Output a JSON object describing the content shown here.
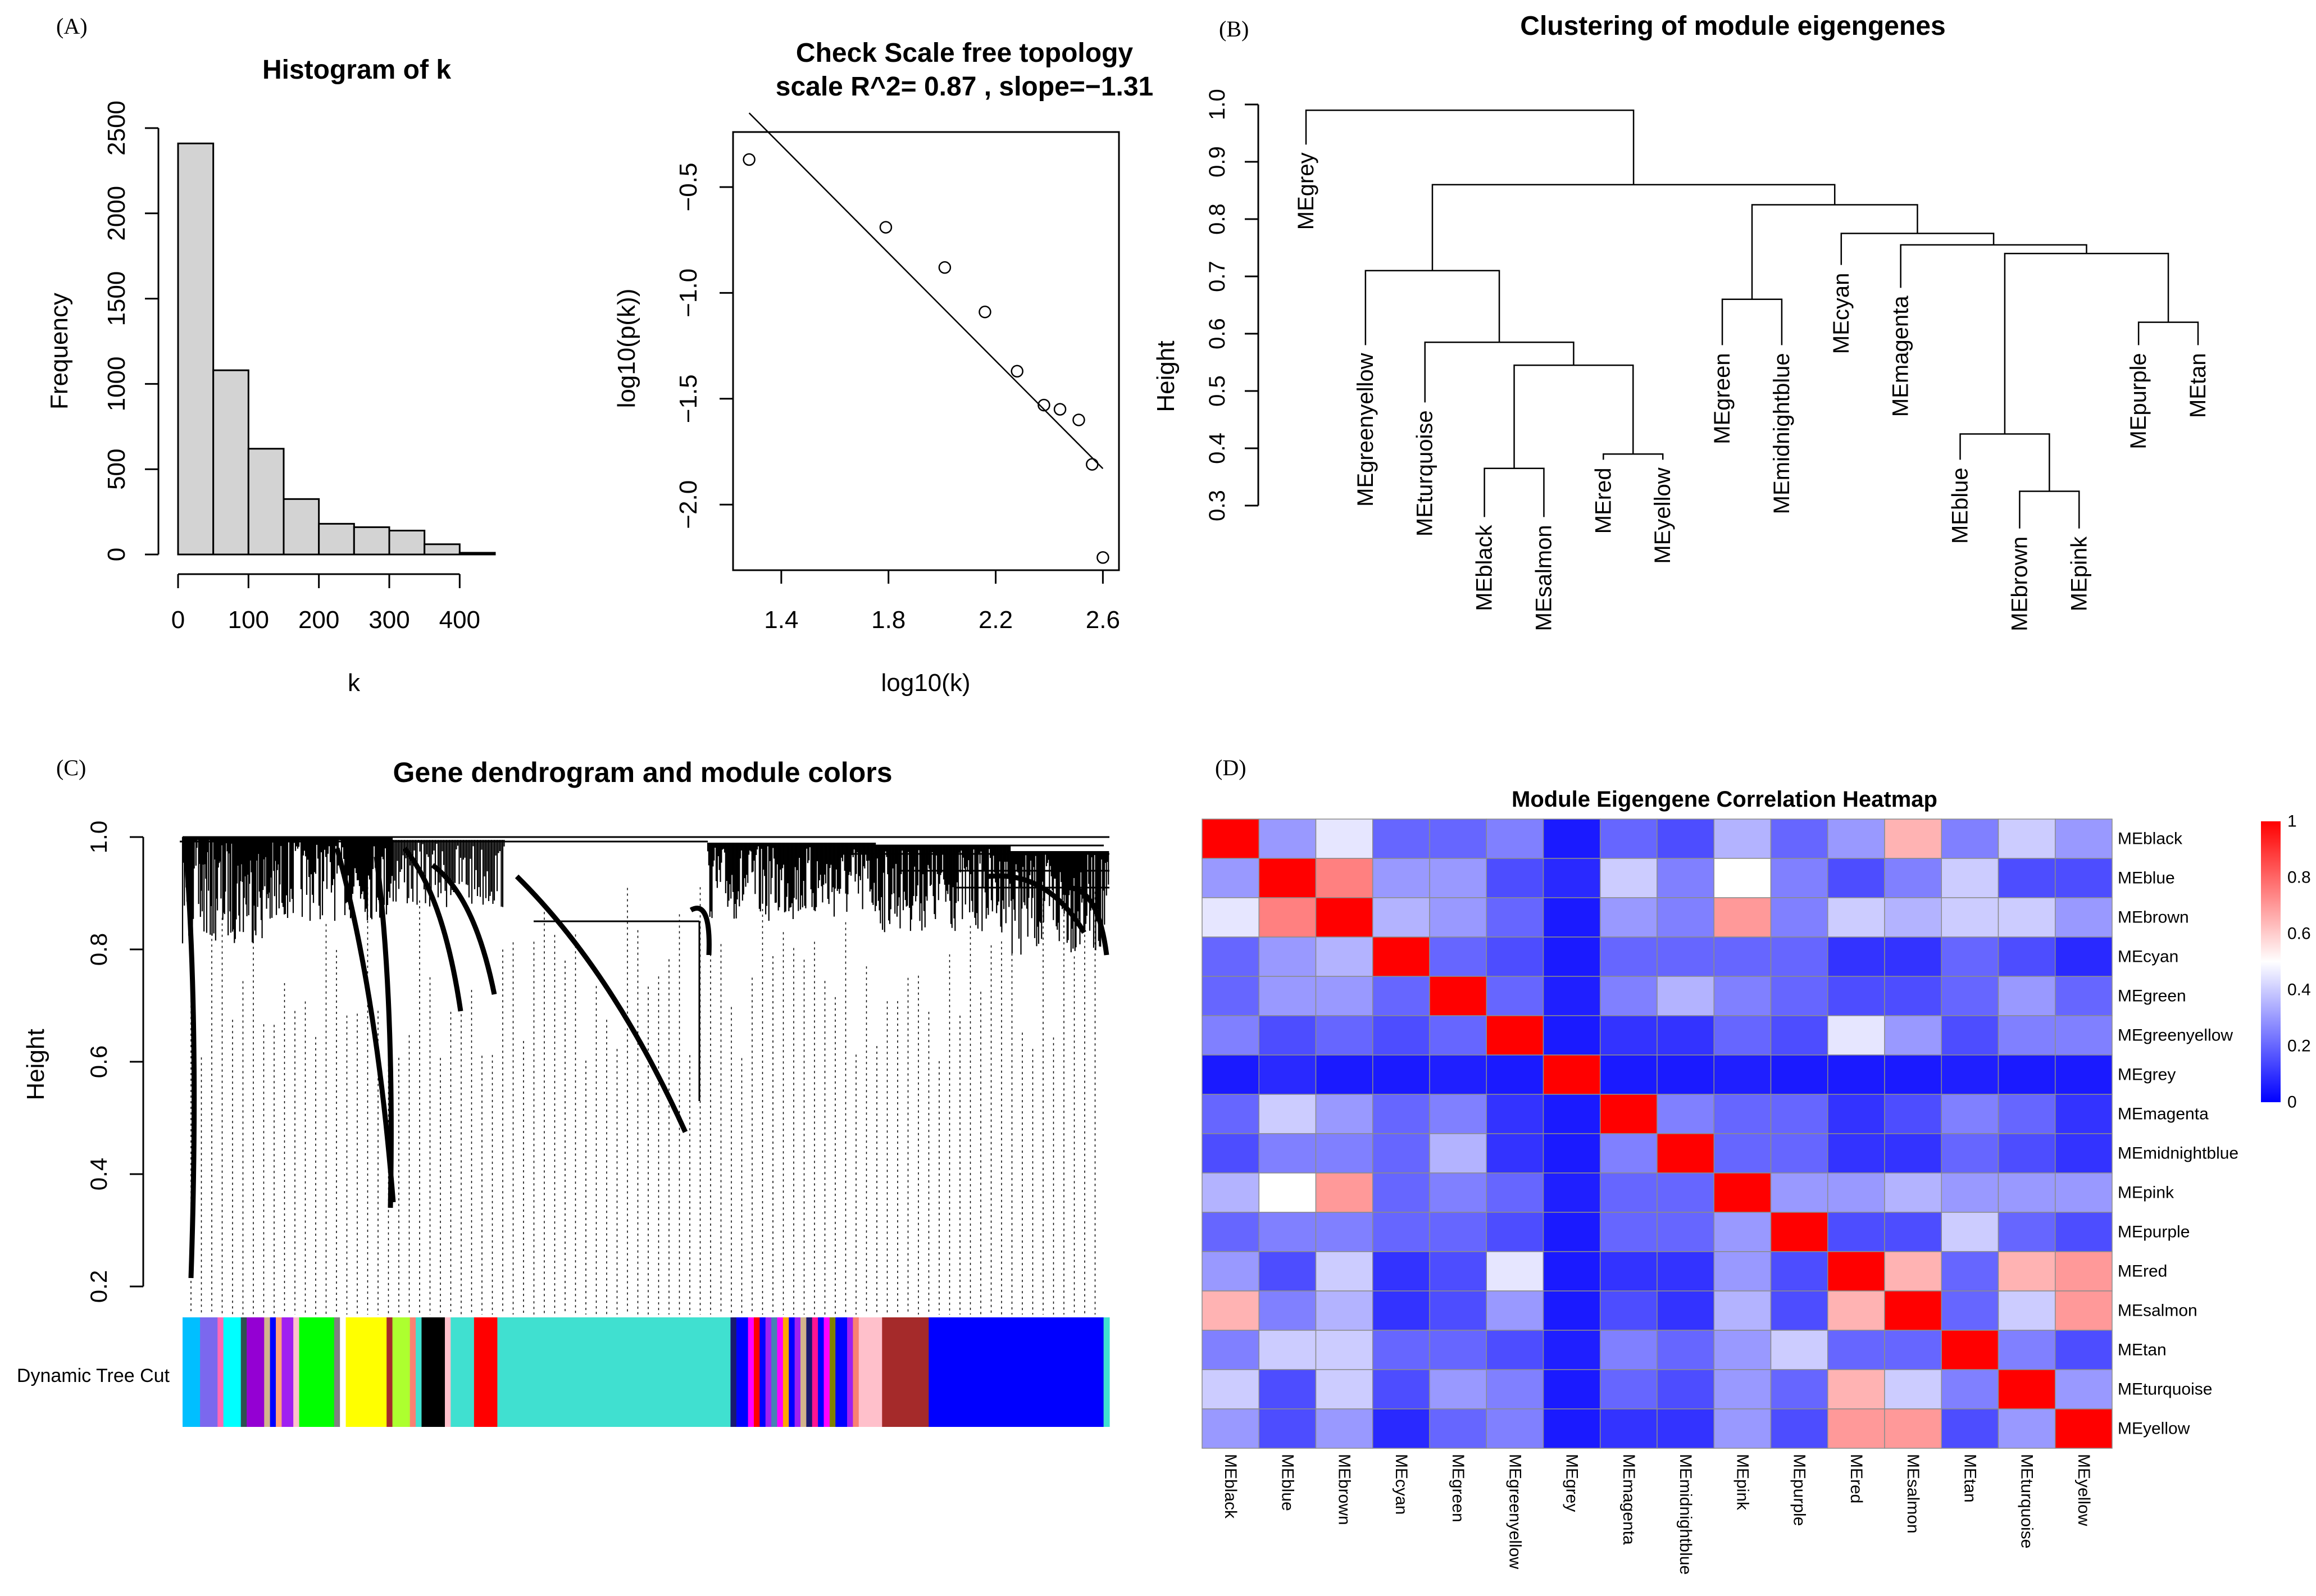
{
  "panels": [
    "(A)",
    "(B)",
    "(C)",
    "(D)"
  ],
  "chart_data": [
    {
      "id": "A1",
      "type": "bar",
      "title": "Histogram  of k",
      "xlabel": "k",
      "ylabel": "Frequency",
      "bins": [
        [
          0,
          50
        ],
        [
          50,
          100
        ],
        [
          100,
          150
        ],
        [
          150,
          200
        ],
        [
          200,
          250
        ],
        [
          250,
          300
        ],
        [
          300,
          350
        ],
        [
          350,
          400
        ],
        [
          400,
          450
        ]
      ],
      "values": [
        2410,
        1080,
        620,
        325,
        180,
        160,
        140,
        60,
        10
      ],
      "xticks": [
        0,
        100,
        200,
        300,
        400
      ],
      "yticks": [
        0,
        500,
        1000,
        1500,
        2000,
        2500
      ],
      "xlim": [
        0,
        450
      ],
      "ylim": [
        0,
        2500
      ]
    },
    {
      "id": "A2",
      "type": "scatter",
      "title": "Check  Scale free topology",
      "subtitle": "scale  R^2= 0.87 ,  slope=−1.31",
      "xlabel": "log10(k)",
      "ylabel": "log10(p(k))",
      "points": [
        [
          1.28,
          -0.37
        ],
        [
          1.79,
          -0.69
        ],
        [
          2.01,
          -0.88
        ],
        [
          2.16,
          -1.09
        ],
        [
          2.28,
          -1.37
        ],
        [
          2.38,
          -1.53
        ],
        [
          2.44,
          -1.55
        ],
        [
          2.51,
          -1.6
        ],
        [
          2.56,
          -1.81
        ],
        [
          2.6,
          -2.25
        ]
      ],
      "fit_line": [
        [
          1.28,
          -0.15
        ],
        [
          2.6,
          -1.83
        ]
      ],
      "xticks": [
        "1.4",
        "1.8",
        "2.2",
        "2.6"
      ],
      "yticks": [
        "−2.0",
        "−1.5",
        "−1.0",
        "−0.5"
      ],
      "xlim": [
        1.22,
        2.66
      ],
      "ylim": [
        -2.31,
        -0.24
      ]
    },
    {
      "id": "B",
      "type": "dendrogram",
      "title": "Clustering of module eigengenes",
      "ylabel": "Height",
      "yticks": [
        "0.3",
        "0.4",
        "0.5",
        "0.6",
        "0.7",
        "0.8",
        "0.9",
        "1.0"
      ],
      "ylim": [
        0.3,
        1.0
      ],
      "leaves": [
        {
          "label": "MEgrey",
          "h": 0.93
        },
        {
          "label": "MEgreenyellow",
          "h": 0.58
        },
        {
          "label": "MEturquoise",
          "h": 0.48
        },
        {
          "label": "MEblack",
          "h": 0.28
        },
        {
          "label": "MEsalmon",
          "h": 0.28
        },
        {
          "label": "MEred",
          "h": 0.38
        },
        {
          "label": "MEyellow",
          "h": 0.38
        },
        {
          "label": "MEgreen",
          "h": 0.58
        },
        {
          "label": "MEmidnightblue",
          "h": 0.58
        },
        {
          "label": "MEcyan",
          "h": 0.72
        },
        {
          "label": "MEmagenta",
          "h": 0.68
        },
        {
          "label": "MEblue",
          "h": 0.38
        },
        {
          "label": "MEbrown",
          "h": 0.26
        },
        {
          "label": "MEpink",
          "h": 0.26
        },
        {
          "label": "MEpurple",
          "h": 0.58
        },
        {
          "label": "MEtan",
          "h": 0.58
        }
      ],
      "merges": [
        {
          "a": "L3",
          "b": "L4",
          "h": 0.365
        },
        {
          "a": "L5",
          "b": "L6",
          "h": 0.39
        },
        {
          "a": "M0",
          "b": "M1",
          "h": 0.545
        },
        {
          "a": "L2",
          "b": "M2",
          "h": 0.585
        },
        {
          "a": "L1",
          "b": "M3",
          "h": 0.71
        },
        {
          "a": "L7",
          "b": "L8",
          "h": 0.66
        },
        {
          "a": "L12",
          "b": "L13",
          "h": 0.325
        },
        {
          "a": "L11",
          "b": "M6",
          "h": 0.425
        },
        {
          "a": "L14",
          "b": "L15",
          "h": 0.62
        },
        {
          "a": "M7",
          "b": "M8",
          "h": 0.74
        },
        {
          "a": "L10",
          "b": "M9",
          "h": 0.755
        },
        {
          "a": "L9",
          "b": "M10",
          "h": 0.775
        },
        {
          "a": "M5",
          "b": "M11",
          "h": 0.825
        },
        {
          "a": "M4",
          "b": "M12",
          "h": 0.86
        },
        {
          "a": "L0",
          "b": "M13",
          "h": 0.99
        }
      ]
    },
    {
      "id": "C",
      "type": "dendrogram",
      "title": "Gene dendrogram and module colors",
      "ylabel": "Height",
      "yticks": [
        "0.2",
        "0.4",
        "0.6",
        "0.8",
        "1.0"
      ],
      "ylim": [
        0.1,
        1.0
      ],
      "colorbar_label": "Dynamic Tree Cut",
      "colorbar": [
        {
          "c": "#00bfff",
          "w": 3
        },
        {
          "c": "#7b68ee",
          "w": 3
        },
        {
          "c": "#ff69b4",
          "w": 1
        },
        {
          "c": "#00ffff",
          "w": 3
        },
        {
          "c": "#2f4f4f",
          "w": 1
        },
        {
          "c": "#9400d3",
          "w": 3
        },
        {
          "c": "#d2b48c",
          "w": 1
        },
        {
          "c": "#0000ff",
          "w": 1
        },
        {
          "c": "#ffa07a",
          "w": 1
        },
        {
          "c": "#a020f0",
          "w": 2
        },
        {
          "c": "#ffc0cb",
          "w": 1
        },
        {
          "c": "#00ff00",
          "w": 6
        },
        {
          "c": "#808080",
          "w": 1
        },
        {
          "c": "#ffffff",
          "w": 1
        },
        {
          "c": "#ffff00",
          "w": 7
        },
        {
          "c": "#a52a2a",
          "w": 1
        },
        {
          "c": "#adff2f",
          "w": 3
        },
        {
          "c": "#fa8072",
          "w": 1
        },
        {
          "c": "#40e0d0",
          "w": 1
        },
        {
          "c": "#000000",
          "w": 4
        },
        {
          "c": "#ffc0cb",
          "w": 1
        },
        {
          "c": "#40e0d0",
          "w": 4
        },
        {
          "c": "#ff0000",
          "w": 4
        },
        {
          "c": "#40e0d0",
          "w": 40
        },
        {
          "c": "#191970",
          "w": 1
        },
        {
          "c": "#0000ff",
          "w": 2
        },
        {
          "c": "#ff00ff",
          "w": 1
        },
        {
          "c": "#ff0000",
          "w": 1
        },
        {
          "c": "#0000ff",
          "w": 1
        },
        {
          "c": "#a020f0",
          "w": 1
        },
        {
          "c": "#4682b4",
          "w": 1
        },
        {
          "c": "#ff00ff",
          "w": 1
        },
        {
          "c": "#ffa500",
          "w": 1
        },
        {
          "c": "#0000ff",
          "w": 1
        },
        {
          "c": "#a020f0",
          "w": 1
        },
        {
          "c": "#d2b48c",
          "w": 1
        },
        {
          "c": "#191970",
          "w": 1
        },
        {
          "c": "#ff1493",
          "w": 1
        },
        {
          "c": "#0000ff",
          "w": 1
        },
        {
          "c": "#ff00ff",
          "w": 1
        },
        {
          "c": "#808000",
          "w": 1
        },
        {
          "c": "#0000ff",
          "w": 2
        },
        {
          "c": "#a020f0",
          "w": 1
        },
        {
          "c": "#fa8072",
          "w": 1
        },
        {
          "c": "#ffc0cb",
          "w": 4
        },
        {
          "c": "#a52a2a",
          "w": 8
        },
        {
          "c": "#0000ff",
          "w": 30
        },
        {
          "c": "#40e0d0",
          "w": 1
        }
      ]
    },
    {
      "id": "D",
      "type": "heatmap",
      "title": "Module Eigengene Correlation Heatmap",
      "labels": [
        "MEblack",
        "MEblue",
        "MEbrown",
        "MEcyan",
        "MEgreen",
        "MEgreenyellow",
        "MEgrey",
        "MEmagenta",
        "MEmidnightblue",
        "MEpink",
        "MEpurple",
        "MEred",
        "MEsalmon",
        "MEtan",
        "MEturquoise",
        "MEyellow"
      ],
      "colorscale": {
        "low": "#0000ff",
        "mid": "#ffffff",
        "high": "#ff0000",
        "min": 0,
        "mid_value": 0.5,
        "max": 1
      },
      "legend_ticks": [
        "1",
        "0.8",
        "0.6",
        "0.4",
        "0.2",
        "0"
      ],
      "matrix": [
        [
          1.0,
          0.3,
          0.45,
          0.2,
          0.2,
          0.25,
          0.05,
          0.2,
          0.15,
          0.35,
          0.2,
          0.3,
          0.65,
          0.25,
          0.4,
          0.3
        ],
        [
          0.3,
          1.0,
          0.75,
          0.3,
          0.3,
          0.15,
          0.08,
          0.4,
          0.25,
          0.5,
          0.25,
          0.15,
          0.25,
          0.4,
          0.15,
          0.15
        ],
        [
          0.45,
          0.75,
          1.0,
          0.35,
          0.3,
          0.2,
          0.05,
          0.3,
          0.25,
          0.7,
          0.25,
          0.4,
          0.35,
          0.4,
          0.4,
          0.3
        ],
        [
          0.2,
          0.3,
          0.35,
          1.0,
          0.2,
          0.15,
          0.05,
          0.2,
          0.2,
          0.2,
          0.2,
          0.1,
          0.1,
          0.2,
          0.15,
          0.08
        ],
        [
          0.2,
          0.3,
          0.3,
          0.2,
          1.0,
          0.2,
          0.06,
          0.25,
          0.35,
          0.25,
          0.2,
          0.15,
          0.15,
          0.2,
          0.3,
          0.2
        ],
        [
          0.25,
          0.15,
          0.2,
          0.15,
          0.2,
          1.0,
          0.05,
          0.1,
          0.1,
          0.2,
          0.15,
          0.45,
          0.3,
          0.15,
          0.25,
          0.25
        ],
        [
          0.05,
          0.08,
          0.05,
          0.05,
          0.06,
          0.05,
          1.0,
          0.05,
          0.05,
          0.06,
          0.05,
          0.05,
          0.05,
          0.06,
          0.05,
          0.05
        ],
        [
          0.2,
          0.4,
          0.3,
          0.2,
          0.25,
          0.1,
          0.05,
          1.0,
          0.25,
          0.2,
          0.2,
          0.1,
          0.15,
          0.25,
          0.2,
          0.1
        ],
        [
          0.15,
          0.25,
          0.25,
          0.2,
          0.35,
          0.1,
          0.05,
          0.25,
          1.0,
          0.2,
          0.2,
          0.1,
          0.1,
          0.2,
          0.15,
          0.1
        ],
        [
          0.35,
          0.5,
          0.7,
          0.2,
          0.25,
          0.2,
          0.06,
          0.2,
          0.2,
          1.0,
          0.3,
          0.3,
          0.35,
          0.3,
          0.3,
          0.3
        ],
        [
          0.2,
          0.25,
          0.25,
          0.2,
          0.2,
          0.15,
          0.05,
          0.2,
          0.2,
          0.3,
          1.0,
          0.15,
          0.15,
          0.4,
          0.2,
          0.15
        ],
        [
          0.3,
          0.15,
          0.4,
          0.1,
          0.15,
          0.45,
          0.05,
          0.1,
          0.1,
          0.3,
          0.15,
          1.0,
          0.65,
          0.2,
          0.65,
          0.7
        ],
        [
          0.65,
          0.25,
          0.35,
          0.1,
          0.15,
          0.3,
          0.05,
          0.15,
          0.1,
          0.35,
          0.15,
          0.65,
          1.0,
          0.2,
          0.4,
          0.7
        ],
        [
          0.25,
          0.4,
          0.4,
          0.2,
          0.2,
          0.15,
          0.06,
          0.25,
          0.2,
          0.3,
          0.4,
          0.2,
          0.2,
          1.0,
          0.25,
          0.15
        ],
        [
          0.4,
          0.15,
          0.4,
          0.15,
          0.3,
          0.25,
          0.05,
          0.2,
          0.15,
          0.3,
          0.2,
          0.65,
          0.4,
          0.25,
          1.0,
          0.3
        ],
        [
          0.3,
          0.15,
          0.3,
          0.08,
          0.2,
          0.25,
          0.05,
          0.1,
          0.1,
          0.3,
          0.15,
          0.7,
          0.7,
          0.15,
          0.3,
          1.0
        ]
      ]
    }
  ]
}
